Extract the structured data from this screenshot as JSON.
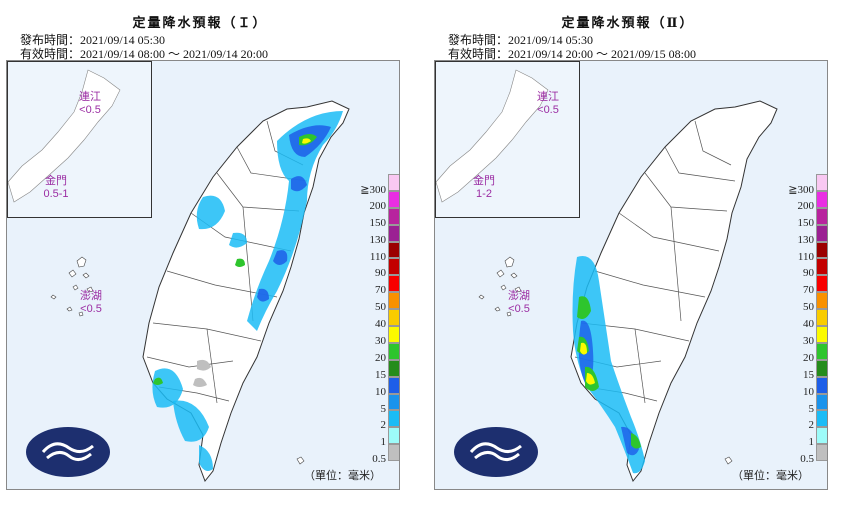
{
  "panels": [
    {
      "title": "定量降水預報（Ｉ）",
      "issued": "發布時間：2021/09/14 05:30",
      "valid": "有效時間：2021/09/14 08:00 ～ 2021/09/14 20:00",
      "kinmen_name": "金門",
      "kinmen_value": "0.5-1",
      "lienchiang_name": "連江",
      "lienchiang_value": "<0.5",
      "penghu_name": "澎湖",
      "penghu_value": "<0.5",
      "unit": "（單位：毫米）"
    },
    {
      "title": "定量降水預報（Ⅱ）",
      "issued": "發布時間：2021/09/14 05:30",
      "valid": "有效時間：2021/09/14 20:00 ～ 2021/09/15 08:00",
      "kinmen_name": "金門",
      "kinmen_value": "1-2",
      "lienchiang_name": "連江",
      "lienchiang_value": "<0.5",
      "penghu_name": "澎湖",
      "penghu_value": "<0.5",
      "unit": "（單位：毫米）"
    }
  ],
  "legend": [
    {
      "label": "≧300",
      "color": "#f9c8f2"
    },
    {
      "label": "200",
      "color": "#e92ee3"
    },
    {
      "label": "150",
      "color": "#b8239e"
    },
    {
      "label": "130",
      "color": "#9b2093"
    },
    {
      "label": "110",
      "color": "#9b0000"
    },
    {
      "label": "90",
      "color": "#c30000"
    },
    {
      "label": "70",
      "color": "#f80000"
    },
    {
      "label": "50",
      "color": "#f99100"
    },
    {
      "label": "40",
      "color": "#f9cc00"
    },
    {
      "label": "30",
      "color": "#fbfa00"
    },
    {
      "label": "20",
      "color": "#2ec52d"
    },
    {
      "label": "15",
      "color": "#258c1c"
    },
    {
      "label": "10",
      "color": "#1d5ee8"
    },
    {
      "label": "5",
      "color": "#1a93ec"
    },
    {
      "label": "2",
      "color": "#1bbcf6"
    },
    {
      "label": "1",
      "color": "#9dfbf9"
    },
    {
      "label": "0.5",
      "color": "#bfbfbf"
    }
  ]
}
